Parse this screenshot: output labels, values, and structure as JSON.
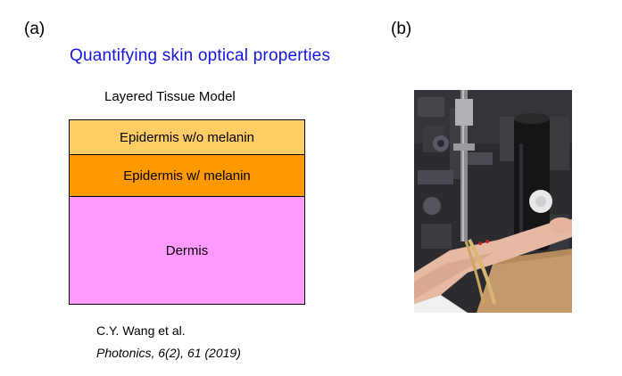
{
  "panel_a": {
    "label": "(a)",
    "title": "Quantifying skin optical properties",
    "model_heading": "Layered Tissue Model",
    "layers": [
      {
        "label": "Epidermis w/o melanin",
        "color": "#ffcc66"
      },
      {
        "label": "Epidermis w/ melanin",
        "color": "#ff9900"
      },
      {
        "label": "Dermis",
        "color": "#ff99ff"
      }
    ],
    "citation": {
      "authors": "C.Y. Wang et al.",
      "journal": "Photonics, 6(2), 61 (2019)"
    },
    "title_color": "#1515e0"
  },
  "panel_b": {
    "label": "(b)"
  }
}
